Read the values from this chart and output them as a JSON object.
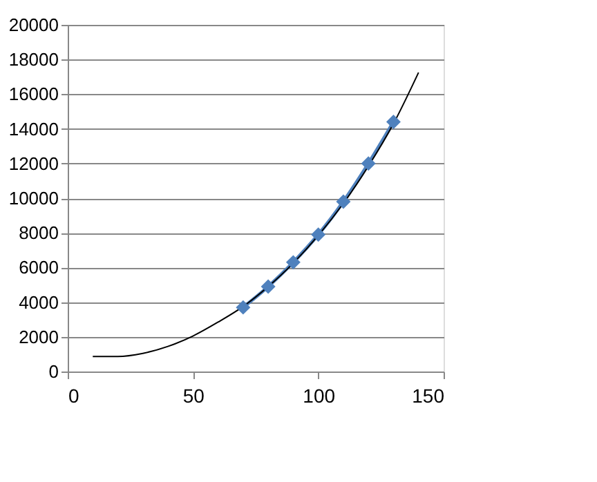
{
  "chart_data": {
    "type": "line",
    "xlim": [
      0,
      150
    ],
    "xticks": [
      0,
      50,
      100,
      150
    ],
    "ylim": [
      0,
      20000
    ],
    "yticks": [
      0,
      2000,
      4000,
      6000,
      8000,
      10000,
      12000,
      14000,
      16000,
      18000,
      20000
    ],
    "grid": "y",
    "series": [
      {
        "color": "#4f81bd",
        "marker": "diamond",
        "x": [
          70,
          80,
          90,
          100,
          110,
          120,
          130
        ],
        "values": [
          3700,
          4900,
          6300,
          7900,
          9800,
          12000,
          14400
        ]
      },
      {
        "type": "line",
        "color": "#000000",
        "marker": "none",
        "x": [
          10,
          20,
          30,
          40,
          50,
          60,
          70,
          80,
          90,
          100,
          110,
          120,
          130,
          140
        ],
        "values": [
          870,
          870,
          1050,
          1450,
          2050,
          2850,
          3750,
          4900,
          6250,
          7850,
          9700,
          11850,
          14300,
          17250
        ]
      }
    ]
  }
}
